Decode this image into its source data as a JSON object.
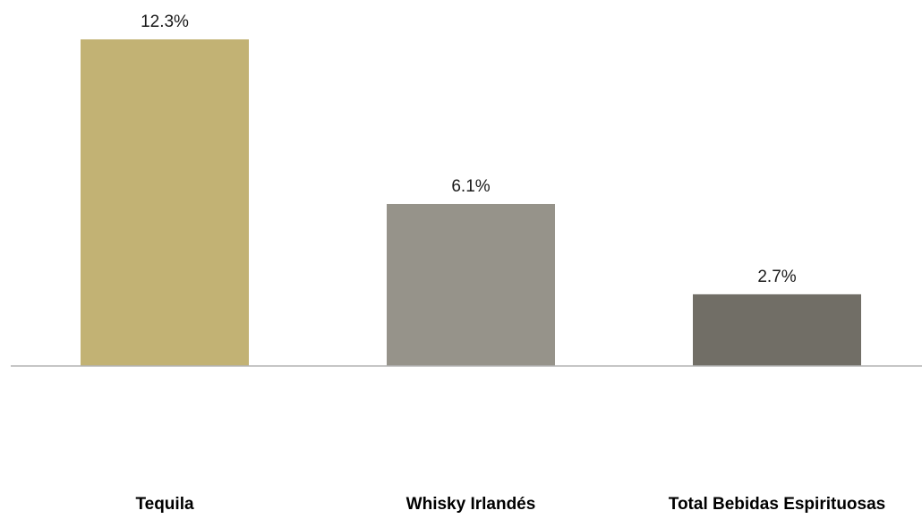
{
  "chart_data": {
    "type": "bar",
    "categories": [
      "Tequila",
      "Whisky Irlandés",
      "Total Bebidas Espirituosas"
    ],
    "values": [
      12.3,
      6.1,
      2.7
    ],
    "data_labels": [
      "12.3%",
      "6.1%",
      "2.7%"
    ],
    "bar_colors": [
      "#c2b274",
      "#96938a",
      "#716e66"
    ],
    "axis_color": "#b3b3b3",
    "ylim": [
      0,
      12.3
    ],
    "grid": false,
    "legend": "none"
  }
}
